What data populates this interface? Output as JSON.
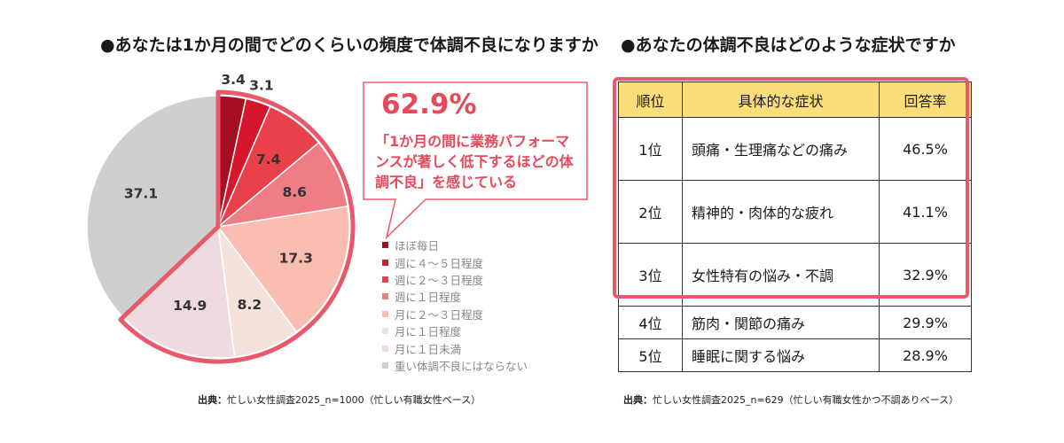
{
  "left": {
    "title": "●あなたは1か月の間でどのくらいの頻度で体調不良になりますか",
    "callout_pct": "62.9%",
    "callout_text": "「1か月の間に業務パフォーマンスが著しく低下するほどの体調不良」を感じている",
    "source_label": "出典：",
    "source_text": "忙しい女性調査2025_n=1000（忙しい有職女性ベース）"
  },
  "right": {
    "title": "●あなたの体調不良はどのような症状ですか",
    "headers": [
      "順位",
      "具体的な症状",
      "回答率"
    ],
    "rows": [
      {
        "rank": "1位",
        "symptom": "頭痛・生理痛などの痛み",
        "rate": "46.5%"
      },
      {
        "rank": "2位",
        "symptom": "精神的・肉体的な疲れ",
        "rate": "41.1%"
      },
      {
        "rank": "3位",
        "symptom": "女性特有の悩み・不調",
        "rate": "32.9%"
      },
      {
        "rank": "4位",
        "symptom": "筋肉・関節の痛み",
        "rate": "29.9%"
      },
      {
        "rank": "5位",
        "symptom": "睡眠に関する悩み",
        "rate": "28.9%"
      }
    ],
    "source_label": "出典：",
    "source_text": "忙しい女性調査2025_n=629（忙しい有職女性かつ不調ありベース）"
  },
  "chart_data": [
    {
      "type": "pie",
      "title": "●あなたは1か月の間でどのくらいの頻度で体調不良になりますか",
      "categories": [
        "ほぼ毎日",
        "週に４～５日程度",
        "週に２～３日程度",
        "週に１日程度",
        "月に２～３日程度",
        "月に１日程度",
        "月に１日未満",
        "重い体調不良にはならない"
      ],
      "values": [
        3.4,
        3.1,
        7.4,
        8.6,
        17.3,
        8.2,
        14.9,
        37.1
      ],
      "labels": [
        "3.4",
        "3.1",
        "7.4",
        "8.6",
        "17.3",
        "8.2",
        "14.9",
        "37.1"
      ],
      "colors": [
        "#a50f22",
        "#d5162c",
        "#e8414c",
        "#f07d86",
        "#f9bdb2",
        "#f3e2db",
        "#eedbe1",
        "#cfcfcf"
      ],
      "legend_position": "right",
      "highlight_total": "62.9%"
    },
    {
      "type": "table",
      "title": "●あなたの体調不良はどのような症状ですか",
      "columns": [
        "順位",
        "具体的な症状",
        "回答率"
      ],
      "rows": [
        [
          "1位",
          "頭痛・生理痛などの痛み",
          "46.5%"
        ],
        [
          "2位",
          "精神的・肉体的な疲れ",
          "41.1%"
        ],
        [
          "3位",
          "女性特有の悩み・不調",
          "32.9%"
        ],
        [
          "4位",
          "筋肉・関節の痛み",
          "29.9%"
        ],
        [
          "5位",
          "睡眠に関する悩み",
          "28.9%"
        ]
      ],
      "highlighted_rows": [
        "1位",
        "2位",
        "3位"
      ]
    }
  ]
}
